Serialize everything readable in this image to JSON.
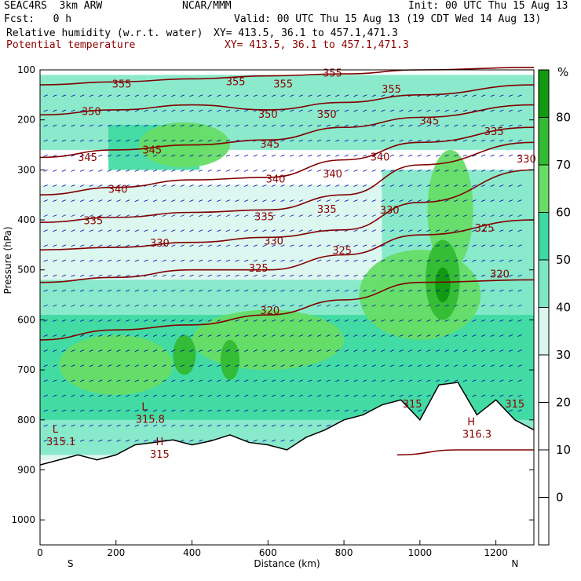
{
  "header": {
    "model": "SEAC4RS  3km ARW",
    "org": "NCAR/MMM",
    "init": "Init: 00 UTC Thu 15 Aug 13",
    "fcst": "Fcst:   0 h",
    "valid": "Valid: 00 UTC Thu 15 Aug 13 (19 CDT Wed 14 Aug 13)",
    "field1": "Relative humidity (w.r.t. water)",
    "xy1": "XY= 413.5, 36.1 to 457.1,471.3",
    "field2": "Potential temperature",
    "xy2": "XY= 413.5, 36.1 to 457.1,471.3"
  },
  "colors": {
    "rh_fills": [
      "#d8f5ee",
      "#7ee8c6",
      "#3cd9a0",
      "#66dd66",
      "#33bb33",
      "#119911"
    ],
    "theta_line": "#800000",
    "terrain": "#000000",
    "wind_vector": "#0000aa"
  },
  "chart_data": {
    "type": "cross-section",
    "xlabel": "Distance (km)",
    "ylabel": "Pressure (hPa)",
    "xlim": [
      0,
      1300
    ],
    "ylim": [
      1050,
      100
    ],
    "x_ticks": [
      0,
      200,
      400,
      600,
      800,
      1000,
      1200
    ],
    "y_ticks": [
      100,
      200,
      300,
      400,
      500,
      600,
      700,
      800,
      900,
      1000
    ],
    "x_end_labels": {
      "left": "S",
      "right": "N"
    },
    "colorbar": {
      "unit": "%",
      "ticks": [
        80,
        70,
        60,
        50,
        40,
        30,
        20,
        10,
        0
      ],
      "levels": [
        30,
        40,
        50,
        60,
        70,
        80
      ],
      "range": [
        -10,
        90
      ]
    },
    "theta_contours": [
      {
        "value": 355,
        "points": [
          [
            0,
            130
          ],
          [
            200,
            124
          ],
          [
            400,
            118
          ],
          [
            600,
            112
          ],
          [
            800,
            108
          ],
          [
            1000,
            100
          ],
          [
            1300,
            95
          ]
        ],
        "labels": [
          [
            215,
            130
          ],
          [
            515,
            125
          ],
          [
            640,
            130
          ],
          [
            770,
            108
          ],
          [
            925,
            140
          ]
        ]
      },
      {
        "value": 350,
        "points": [
          [
            0,
            190
          ],
          [
            200,
            180
          ],
          [
            400,
            170
          ],
          [
            600,
            180
          ],
          [
            800,
            165
          ],
          [
            1000,
            150
          ],
          [
            1300,
            130
          ]
        ],
        "labels": [
          [
            135,
            185
          ],
          [
            600,
            190
          ],
          [
            755,
            190
          ]
        ]
      },
      {
        "value": 345,
        "points": [
          [
            0,
            275
          ],
          [
            200,
            260
          ],
          [
            400,
            250
          ],
          [
            600,
            240
          ],
          [
            800,
            215
          ],
          [
            1000,
            195
          ],
          [
            1300,
            170
          ]
        ],
        "labels": [
          [
            125,
            277
          ],
          [
            295,
            262
          ],
          [
            605,
            250
          ],
          [
            1025,
            204
          ]
        ]
      },
      {
        "value": 340,
        "points": [
          [
            0,
            350
          ],
          [
            200,
            335
          ],
          [
            400,
            320
          ],
          [
            600,
            315
          ],
          [
            800,
            280
          ],
          [
            1000,
            245
          ],
          [
            1300,
            215
          ]
        ],
        "labels": [
          [
            205,
            340
          ],
          [
            620,
            320
          ],
          [
            770,
            310
          ],
          [
            895,
            276
          ]
        ]
      },
      {
        "value": 335,
        "points": [
          [
            0,
            405
          ],
          [
            200,
            395
          ],
          [
            400,
            385
          ],
          [
            600,
            380
          ],
          [
            800,
            350
          ],
          [
            1000,
            290
          ],
          [
            1300,
            245
          ]
        ],
        "labels": [
          [
            140,
            403
          ],
          [
            590,
            395
          ],
          [
            755,
            380
          ],
          [
            1195,
            225
          ]
        ]
      },
      {
        "value": 330,
        "points": [
          [
            0,
            460
          ],
          [
            200,
            455
          ],
          [
            400,
            445
          ],
          [
            600,
            435
          ],
          [
            800,
            420
          ],
          [
            1000,
            365
          ],
          [
            1300,
            300
          ]
        ],
        "labels": [
          [
            315,
            448
          ],
          [
            615,
            444
          ],
          [
            920,
            382
          ],
          [
            1280,
            280
          ]
        ]
      },
      {
        "value": 325,
        "points": [
          [
            0,
            525
          ],
          [
            200,
            515
          ],
          [
            400,
            500
          ],
          [
            600,
            500
          ],
          [
            800,
            470
          ],
          [
            1000,
            430
          ],
          [
            1300,
            400
          ]
        ],
        "labels": [
          [
            575,
            498
          ],
          [
            795,
            463
          ],
          [
            1170,
            418
          ]
        ]
      },
      {
        "value": 320,
        "points": [
          [
            0,
            640
          ],
          [
            200,
            620
          ],
          [
            400,
            610
          ],
          [
            600,
            590
          ],
          [
            800,
            560
          ],
          [
            1000,
            525
          ],
          [
            1300,
            520
          ]
        ],
        "labels": [
          [
            605,
            583
          ],
          [
            1210,
            510
          ]
        ]
      },
      {
        "value": 315,
        "points": [
          [
            940,
            870
          ],
          [
            1100,
            860
          ],
          [
            1300,
            860
          ]
        ],
        "labels": [
          [
            980,
            770
          ],
          [
            1250,
            770
          ]
        ]
      }
    ],
    "rh_field_percent": [
      {
        "p": 250,
        "x": 380,
        "rh": 68
      },
      {
        "p": 530,
        "x": 1060,
        "rh": 82
      },
      {
        "p": 680,
        "x": 380,
        "rh": 68
      },
      {
        "p": 700,
        "x": 200,
        "rh": 58
      },
      {
        "p": 400,
        "x": 1100,
        "rh": 72
      }
    ],
    "terrain": [
      [
        0,
        890
      ],
      [
        50,
        880
      ],
      [
        100,
        870
      ],
      [
        150,
        880
      ],
      [
        200,
        870
      ],
      [
        250,
        850
      ],
      [
        300,
        845
      ],
      [
        350,
        840
      ],
      [
        400,
        850
      ],
      [
        450,
        842
      ],
      [
        500,
        830
      ],
      [
        550,
        845
      ],
      [
        600,
        850
      ],
      [
        650,
        860
      ],
      [
        700,
        835
      ],
      [
        750,
        820
      ],
      [
        800,
        800
      ],
      [
        850,
        790
      ],
      [
        900,
        770
      ],
      [
        950,
        760
      ],
      [
        1000,
        800
      ],
      [
        1050,
        730
      ],
      [
        1100,
        725
      ],
      [
        1150,
        790
      ],
      [
        1200,
        760
      ],
      [
        1250,
        800
      ],
      [
        1300,
        820
      ]
    ],
    "annotations": [
      {
        "text": "L",
        "x": 40,
        "p": 820
      },
      {
        "text": "315.1",
        "x": 55,
        "p": 845
      },
      {
        "text": "L",
        "x": 275,
        "p": 775
      },
      {
        "text": "315.8",
        "x": 290,
        "p": 800
      },
      {
        "text": "H",
        "x": 315,
        "p": 845
      },
      {
        "text": "315",
        "x": 315,
        "p": 870
      },
      {
        "text": "H",
        "x": 1135,
        "p": 805
      },
      {
        "text": "316.3",
        "x": 1150,
        "p": 830
      }
    ]
  }
}
